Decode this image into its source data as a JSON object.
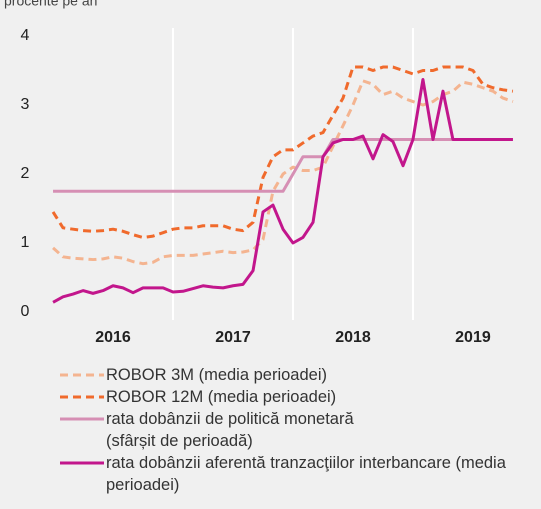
{
  "chart_data": {
    "type": "line",
    "ylabel": "procente pe an",
    "x": [
      2016.0,
      2016.083,
      2016.167,
      2016.25,
      2016.333,
      2016.417,
      2016.5,
      2016.583,
      2016.667,
      2016.75,
      2016.833,
      2016.917,
      2017.0,
      2017.083,
      2017.167,
      2017.25,
      2017.333,
      2017.417,
      2017.5,
      2017.583,
      2017.667,
      2017.75,
      2017.833,
      2017.917,
      2018.0,
      2018.083,
      2018.167,
      2018.25,
      2018.333,
      2018.417,
      2018.5,
      2018.583,
      2018.667,
      2018.75,
      2018.833,
      2018.917,
      2019.0,
      2019.083,
      2019.167,
      2019.25,
      2019.333,
      2019.417,
      2019.5,
      2019.583,
      2019.667,
      2019.75,
      2019.833
    ],
    "xlim": [
      2015.933,
      2019.892
    ],
    "xticks": [
      {
        "value": 2016.5,
        "label": "2016"
      },
      {
        "value": 2017.5,
        "label": "2017"
      },
      {
        "value": 2018.5,
        "label": "2018"
      },
      {
        "value": 2019.5,
        "label": "2019"
      }
    ],
    "xgrid": [
      2017,
      2018,
      2019
    ],
    "ylim": [
      0,
      4
    ],
    "yticks": [
      0,
      1,
      2,
      3,
      4
    ],
    "series": [
      {
        "name": "ROBOR 3M (media perioadei)",
        "color": "#f4b490",
        "style": "dashed",
        "values": [
          0.93,
          0.8,
          0.78,
          0.77,
          0.76,
          0.77,
          0.8,
          0.78,
          0.73,
          0.7,
          0.72,
          0.8,
          0.82,
          0.82,
          0.82,
          0.84,
          0.86,
          0.88,
          0.86,
          0.87,
          0.9,
          1.05,
          1.75,
          2.0,
          2.1,
          2.05,
          2.05,
          2.1,
          2.4,
          2.7,
          3.0,
          3.35,
          3.3,
          3.15,
          3.2,
          3.1,
          3.05,
          3.0,
          3.05,
          3.15,
          3.2,
          3.33,
          3.3,
          3.25,
          3.2,
          3.1,
          3.05
        ]
      },
      {
        "name": "ROBOR 12M (media perioadei)",
        "color": "#f06a2c",
        "style": "dashed",
        "values": [
          1.45,
          1.22,
          1.2,
          1.18,
          1.17,
          1.18,
          1.2,
          1.17,
          1.12,
          1.08,
          1.1,
          1.15,
          1.2,
          1.22,
          1.22,
          1.25,
          1.25,
          1.25,
          1.2,
          1.18,
          1.3,
          1.95,
          2.25,
          2.35,
          2.35,
          2.45,
          2.55,
          2.6,
          2.85,
          3.1,
          3.55,
          3.55,
          3.5,
          3.55,
          3.55,
          3.5,
          3.45,
          3.5,
          3.5,
          3.55,
          3.55,
          3.55,
          3.5,
          3.3,
          3.25,
          3.22,
          3.2
        ]
      },
      {
        "name": "rata dobânzii de politică monetară (sfârșit de perioadă)",
        "color": "#d68fb4",
        "style": "solid",
        "values": [
          1.75,
          1.75,
          1.75,
          1.75,
          1.75,
          1.75,
          1.75,
          1.75,
          1.75,
          1.75,
          1.75,
          1.75,
          1.75,
          1.75,
          1.75,
          1.75,
          1.75,
          1.75,
          1.75,
          1.75,
          1.75,
          1.75,
          1.75,
          1.75,
          2.0,
          2.25,
          2.25,
          2.25,
          2.5,
          2.5,
          2.5,
          2.5,
          2.5,
          2.5,
          2.5,
          2.5,
          2.5,
          2.5,
          2.5,
          2.5,
          2.5,
          2.5,
          2.5,
          2.5,
          2.5,
          2.5,
          2.5
        ]
      },
      {
        "name": "rata dobânzii aferentă tranzacţiilor interbancare (media perioadei)",
        "color": "#c2168c",
        "style": "solid",
        "values": [
          0.14,
          0.22,
          0.26,
          0.31,
          0.27,
          0.31,
          0.38,
          0.35,
          0.28,
          0.35,
          0.35,
          0.35,
          0.29,
          0.3,
          0.34,
          0.38,
          0.36,
          0.35,
          0.38,
          0.4,
          0.6,
          1.45,
          1.55,
          1.2,
          1.0,
          1.08,
          1.3,
          2.25,
          2.45,
          2.5,
          2.5,
          2.55,
          2.22,
          2.57,
          2.47,
          2.12,
          2.5,
          3.37,
          2.5,
          3.2,
          2.5,
          2.5,
          2.5,
          2.5,
          2.5,
          2.5,
          2.5
        ]
      }
    ]
  }
}
